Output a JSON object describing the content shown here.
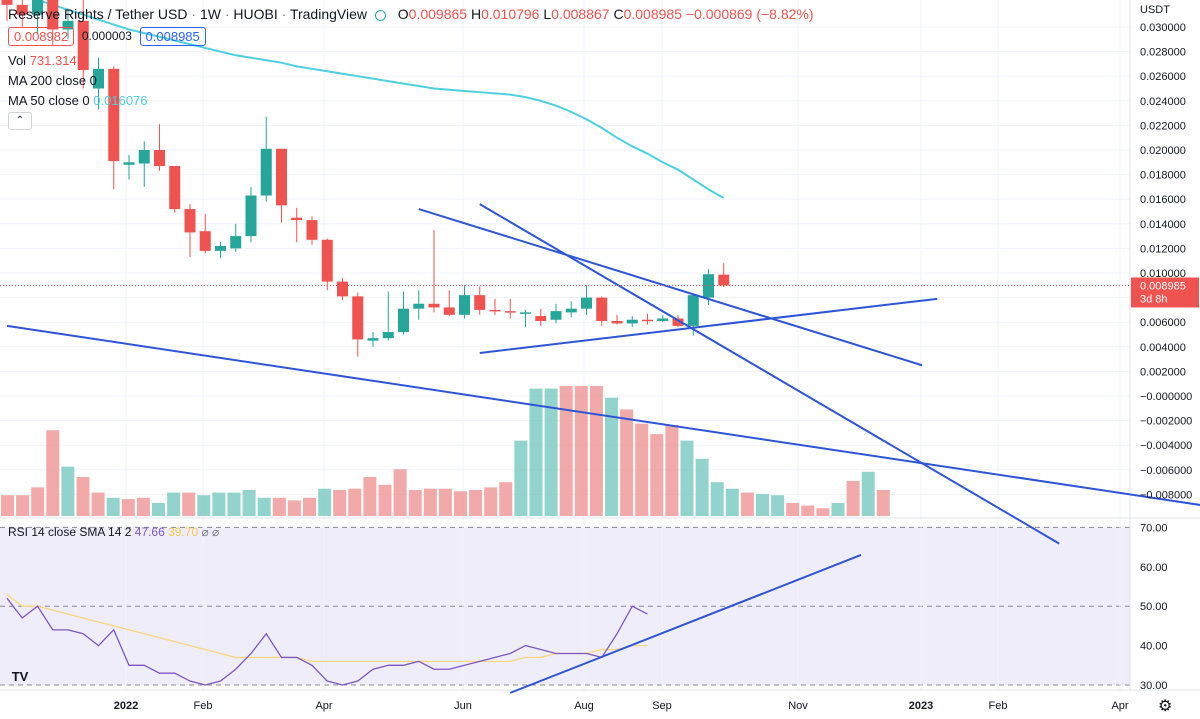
{
  "header": {
    "title": "Reserve Rights / Tether USD",
    "interval": "1W",
    "exchange": "HUOBI",
    "source": "TradingView",
    "ohlc": {
      "o_label": "O",
      "o": "0.009865",
      "h_label": "H",
      "h": "0.010796",
      "l_label": "L",
      "l": "0.008867",
      "c_label": "C",
      "c": "0.008985",
      "change": "−0.000869 (−8.82%)"
    },
    "bid": "0.008982",
    "spread": "0.000003",
    "ask": "0.008985"
  },
  "indicators": {
    "vol_label": "Vol",
    "vol_value": "731.314M",
    "ma200_label": "MA 200 close 0",
    "ma50_label": "MA 50 close 0",
    "ma50_value": "0.016076",
    "collapse": "⌃"
  },
  "rsi": {
    "label": "RSI 14 close SMA 14 2",
    "value": "47.66",
    "sma": "39.70",
    "extra": "⌀ ⌀"
  },
  "axis": {
    "unit": "USDT",
    "price_ticks": [
      "0.030000",
      "0.028000",
      "0.026000",
      "0.024000",
      "0.022000",
      "0.020000",
      "0.018000",
      "0.016000",
      "0.014000",
      "0.012000",
      "0.010000",
      "0.008000",
      "0.006000",
      "0.004000",
      "0.002000",
      "−0.000000",
      "−0.002000",
      "−0.004000",
      "−0.006000",
      "−0.008000"
    ],
    "price_tick_values": [
      0.03,
      0.028,
      0.026,
      0.024,
      0.022,
      0.02,
      0.018,
      0.016,
      0.014,
      0.012,
      0.01,
      0.008,
      0.006,
      0.004,
      0.002,
      0.0,
      -0.002,
      -0.004,
      -0.006,
      -0.008
    ],
    "current_price": "0.008985",
    "countdown": "3d 8h",
    "rsi_ticks": [
      "70.00",
      "60.00",
      "50.00",
      "40.00",
      "30.00"
    ],
    "rsi_tick_values": [
      70,
      60,
      50,
      40,
      30
    ],
    "time_labels": [
      "2022",
      "Feb",
      "Apr",
      "Jun",
      "Aug",
      "Sep",
      "Nov",
      "2023",
      "Feb",
      "Apr"
    ]
  },
  "chart_data": {
    "type": "candlestick",
    "series": [
      {
        "name": "Reserve Rights / Tether USD",
        "kind": "ohlc",
        "candles": [
          {
            "o": 0.033,
            "h": 0.0345,
            "l": 0.0305,
            "c": 0.0318
          },
          {
            "o": 0.0318,
            "h": 0.0335,
            "l": 0.03,
            "c": 0.031
          },
          {
            "o": 0.031,
            "h": 0.034,
            "l": 0.0295,
            "c": 0.0325
          },
          {
            "o": 0.0325,
            "h": 0.0335,
            "l": 0.0285,
            "c": 0.0298
          },
          {
            "o": 0.0298,
            "h": 0.0315,
            "l": 0.029,
            "c": 0.0305
          },
          {
            "o": 0.0305,
            "h": 0.0325,
            "l": 0.025,
            "c": 0.0265
          },
          {
            "o": 0.025,
            "h": 0.0275,
            "l": 0.0233,
            "c": 0.0266
          },
          {
            "o": 0.0266,
            "h": 0.0268,
            "l": 0.0168,
            "c": 0.0191
          },
          {
            "o": 0.0188,
            "h": 0.0196,
            "l": 0.0176,
            "c": 0.019
          },
          {
            "o": 0.0189,
            "h": 0.0207,
            "l": 0.017,
            "c": 0.02
          },
          {
            "o": 0.02,
            "h": 0.0221,
            "l": 0.0183,
            "c": 0.0187
          },
          {
            "o": 0.0187,
            "h": 0.0187,
            "l": 0.0149,
            "c": 0.0152
          },
          {
            "o": 0.0152,
            "h": 0.0156,
            "l": 0.0113,
            "c": 0.0133
          },
          {
            "o": 0.0134,
            "h": 0.0148,
            "l": 0.0116,
            "c": 0.0118
          },
          {
            "o": 0.0118,
            "h": 0.0125,
            "l": 0.0112,
            "c": 0.0122
          },
          {
            "o": 0.012,
            "h": 0.014,
            "l": 0.0117,
            "c": 0.013
          },
          {
            "o": 0.013,
            "h": 0.017,
            "l": 0.0125,
            "c": 0.0163
          },
          {
            "o": 0.0163,
            "h": 0.0227,
            "l": 0.0158,
            "c": 0.0201
          },
          {
            "o": 0.0201,
            "h": 0.0201,
            "l": 0.0141,
            "c": 0.0155
          },
          {
            "o": 0.0145,
            "h": 0.0153,
            "l": 0.0125,
            "c": 0.0143
          },
          {
            "o": 0.0143,
            "h": 0.0146,
            "l": 0.0123,
            "c": 0.0127
          },
          {
            "o": 0.0127,
            "h": 0.0128,
            "l": 0.0086,
            "c": 0.0093
          },
          {
            "o": 0.0093,
            "h": 0.0096,
            "l": 0.0078,
            "c": 0.0081
          },
          {
            "o": 0.0081,
            "h": 0.0084,
            "l": 0.0032,
            "c": 0.0046
          },
          {
            "o": 0.0045,
            "h": 0.0052,
            "l": 0.004,
            "c": 0.0047
          },
          {
            "o": 0.0047,
            "h": 0.0085,
            "l": 0.0045,
            "c": 0.0052
          },
          {
            "o": 0.0052,
            "h": 0.0085,
            "l": 0.005,
            "c": 0.0071
          },
          {
            "o": 0.0071,
            "h": 0.0086,
            "l": 0.0062,
            "c": 0.0075
          },
          {
            "o": 0.0075,
            "h": 0.0135,
            "l": 0.0068,
            "c": 0.0072
          },
          {
            "o": 0.0072,
            "h": 0.0086,
            "l": 0.0065,
            "c": 0.0066
          },
          {
            "o": 0.0066,
            "h": 0.009,
            "l": 0.0063,
            "c": 0.0082
          },
          {
            "o": 0.0082,
            "h": 0.0089,
            "l": 0.0066,
            "c": 0.007
          },
          {
            "o": 0.007,
            "h": 0.0079,
            "l": 0.0066,
            "c": 0.0069
          },
          {
            "o": 0.0069,
            "h": 0.0079,
            "l": 0.0063,
            "c": 0.0068
          },
          {
            "o": 0.0067,
            "h": 0.007,
            "l": 0.0056,
            "c": 0.0068
          },
          {
            "o": 0.0065,
            "h": 0.0071,
            "l": 0.0057,
            "c": 0.0061
          },
          {
            "o": 0.0062,
            "h": 0.0075,
            "l": 0.0059,
            "c": 0.0069
          },
          {
            "o": 0.0068,
            "h": 0.0077,
            "l": 0.0064,
            "c": 0.0071
          },
          {
            "o": 0.0071,
            "h": 0.009,
            "l": 0.0066,
            "c": 0.008
          },
          {
            "o": 0.008,
            "h": 0.0081,
            "l": 0.0057,
            "c": 0.0061
          },
          {
            "o": 0.0061,
            "h": 0.0066,
            "l": 0.0058,
            "c": 0.0059
          },
          {
            "o": 0.0059,
            "h": 0.0065,
            "l": 0.0056,
            "c": 0.0062
          },
          {
            "o": 0.0062,
            "h": 0.0067,
            "l": 0.0058,
            "c": 0.0061
          },
          {
            "o": 0.0061,
            "h": 0.0066,
            "l": 0.006,
            "c": 0.0063
          },
          {
            "o": 0.0063,
            "h": 0.0066,
            "l": 0.0056,
            "c": 0.0057
          },
          {
            "o": 0.0057,
            "h": 0.0083,
            "l": 0.0049,
            "c": 0.0082
          },
          {
            "o": 0.008,
            "h": 0.0103,
            "l": 0.0074,
            "c": 0.0099
          },
          {
            "o": 0.009865,
            "h": 0.010796,
            "l": 0.008867,
            "c": 0.008985
          }
        ]
      },
      {
        "name": "MA 50",
        "kind": "line",
        "values": [
          0.033,
          0.0326,
          0.0322,
          0.0318,
          0.0314,
          0.031,
          0.0306,
          0.0302,
          0.0298,
          0.0295,
          0.0292,
          0.0289,
          0.0286,
          0.0283,
          0.028,
          0.0277,
          0.0275,
          0.0273,
          0.0271,
          0.0268,
          0.0266,
          0.0264,
          0.0262,
          0.026,
          0.0258,
          0.0256,
          0.0254,
          0.0252,
          0.025,
          0.0249,
          0.0248,
          0.0247,
          0.0246,
          0.0245,
          0.0243,
          0.024,
          0.0236,
          0.0231,
          0.0225,
          0.0218,
          0.021,
          0.0203,
          0.0197,
          0.019,
          0.0184,
          0.0176,
          0.0168,
          0.0161
        ]
      },
      {
        "name": "Vol",
        "kind": "volume",
        "values": [
          0.16,
          0.16,
          0.22,
          0.66,
          0.38,
          0.3,
          0.18,
          0.14,
          0.13,
          0.14,
          0.1,
          0.18,
          0.18,
          0.16,
          0.18,
          0.18,
          0.2,
          0.14,
          0.14,
          0.12,
          0.14,
          0.21,
          0.2,
          0.21,
          0.3,
          0.24,
          0.36,
          0.2,
          0.21,
          0.21,
          0.19,
          0.2,
          0.22,
          0.26,
          0.58,
          0.98,
          0.98,
          1.0,
          1.0,
          1.0,
          0.91,
          0.82,
          0.71,
          0.63,
          0.7,
          0.58,
          0.44,
          0.26,
          0.21,
          0.18,
          0.17,
          0.16,
          0.1,
          0.08,
          0.06,
          0.1,
          0.27,
          0.34,
          0.2
        ]
      }
    ],
    "rsi": {
      "values": [
        52,
        47,
        50,
        44,
        44,
        43,
        40,
        44,
        35,
        35,
        33,
        33,
        31,
        30,
        31,
        34,
        38,
        43,
        37,
        37,
        35,
        31,
        30,
        31,
        34,
        35,
        35,
        36,
        34,
        34,
        35,
        36,
        37,
        38,
        40,
        39,
        38,
        38,
        38,
        37,
        43,
        50,
        48
      ],
      "sma": [
        53,
        50,
        50,
        49,
        48,
        47,
        46,
        45,
        44,
        43,
        42,
        41,
        40,
        39,
        38,
        37,
        37,
        37,
        37,
        37,
        36,
        36,
        36,
        36,
        36,
        36,
        36,
        36,
        36,
        36,
        36,
        36,
        36,
        36,
        37,
        37,
        38,
        38,
        38,
        39,
        39,
        40,
        40
      ]
    },
    "drawings": [
      {
        "from": {
          "x": 0,
          "y": 0.0057
        },
        "to": {
          "x": 79,
          "y": -0.009
        }
      },
      {
        "from": {
          "x": 31,
          "y": 0.0156
        },
        "to": {
          "x": 69,
          "y": -0.012
        }
      },
      {
        "from": {
          "x": 27,
          "y": 0.0152
        },
        "to": {
          "x": 60,
          "y": 0.0025
        }
      },
      {
        "from": {
          "x": 31,
          "y": 0.0035
        },
        "to": {
          "x": 61,
          "y": 0.0079
        }
      }
    ],
    "rsi_drawing": {
      "from": {
        "x": 33,
        "y": 28
      },
      "to": {
        "x": 56,
        "y": 63
      }
    }
  }
}
